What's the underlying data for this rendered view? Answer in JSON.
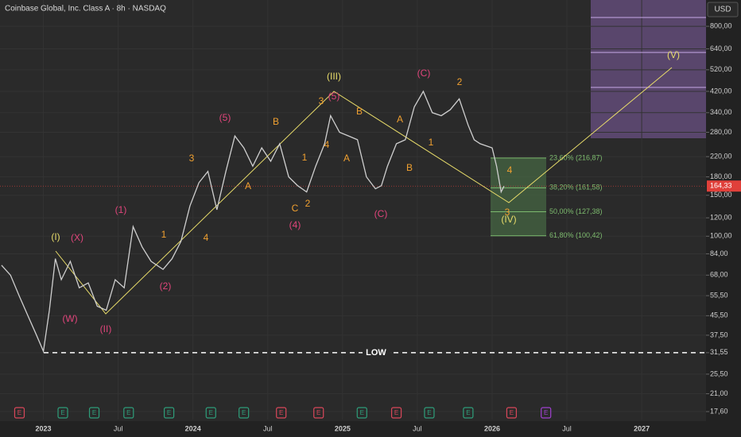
{
  "chart_data": {
    "type": "line",
    "title": "Coinbase Global, Inc. Class A · 8h · NASDAQ",
    "currency": "USD",
    "log_scale": true,
    "grid": true,
    "color": "#cfcfcf",
    "x": [
      2022.72,
      2022.78,
      2022.84,
      2022.9,
      2022.95,
      2023.0,
      2023.04,
      2023.08,
      2023.12,
      2023.18,
      2023.24,
      2023.3,
      2023.36,
      2023.42,
      2023.48,
      2023.54,
      2023.6,
      2023.66,
      2023.72,
      2023.8,
      2023.86,
      2023.92,
      2023.98,
      2024.04,
      2024.1,
      2024.16,
      2024.22,
      2024.28,
      2024.34,
      2024.4,
      2024.46,
      2024.52,
      2024.58,
      2024.64,
      2024.7,
      2024.76,
      2024.82,
      2024.88,
      2024.92,
      2024.98,
      2025.04,
      2025.1,
      2025.16,
      2025.22,
      2025.26,
      2025.3,
      2025.36,
      2025.42,
      2025.48,
      2025.54,
      2025.6,
      2025.66,
      2025.72,
      2025.78,
      2025.84,
      2025.88,
      2025.92,
      2026.0,
      2026.03,
      2026.06,
      2026.08
    ],
    "values": [
      75,
      68,
      55,
      45,
      38,
      32,
      48,
      80,
      65,
      78,
      60,
      63,
      50,
      48,
      65,
      60,
      110,
      90,
      78,
      72,
      80,
      95,
      135,
      170,
      190,
      130,
      190,
      270,
      240,
      200,
      240,
      210,
      250,
      180,
      165,
      155,
      200,
      250,
      330,
      280,
      270,
      260,
      180,
      160,
      165,
      200,
      250,
      260,
      360,
      420,
      340,
      330,
      350,
      390,
      300,
      260,
      250,
      240,
      200,
      155,
      164.33
    ],
    "xlim": [
      2022.71,
      2027.43
    ],
    "xticks": [
      2023,
      {
        "value": 2023.5,
        "label": "Jul"
      },
      2024,
      {
        "value": 2024.5,
        "label": "Jul"
      },
      2025,
      {
        "value": 2025.5,
        "label": "Jul"
      },
      2026,
      {
        "value": 2026.5,
        "label": "Jul"
      },
      2027
    ],
    "ylim": [
      16.27,
      1038
    ],
    "yticks": [
      {
        "value": 800,
        "label": "800,00"
      },
      {
        "value": 640,
        "label": "640,00"
      },
      {
        "value": 520,
        "label": "520,00"
      },
      {
        "value": 420,
        "label": "420,00"
      },
      {
        "value": 340,
        "label": "340,00"
      },
      {
        "value": 280,
        "label": "280,00"
      },
      {
        "value": 220,
        "label": "220,00"
      },
      {
        "value": 180,
        "label": "180,00"
      },
      {
        "value": 150,
        "label": "150,00"
      },
      {
        "value": 120,
        "label": "120,00"
      },
      {
        "value": 100,
        "label": "100,00"
      },
      {
        "value": 84,
        "label": "84,00"
      },
      {
        "value": 68,
        "label": "68,00"
      },
      {
        "value": 55.5,
        "label": "55,50"
      },
      {
        "value": 45.5,
        "label": "45,50"
      },
      {
        "value": 37.5,
        "label": "37,50"
      },
      {
        "value": 31.55,
        "label": "31,55"
      },
      {
        "value": 25.5,
        "label": "25,50"
      },
      {
        "value": 21,
        "label": "21,00"
      },
      {
        "value": 17.6,
        "label": "17,60"
      }
    ],
    "last_price": {
      "value": 164.33,
      "label": "164,33",
      "color": "#e0403a"
    },
    "low_line": {
      "value": 31.55,
      "label": "LOW"
    },
    "fib_levels": [
      {
        "value": 216.87,
        "label": "23,60% (216,87)"
      },
      {
        "value": 161.58,
        "label": "38,20% (161,58)"
      },
      {
        "value": 127.38,
        "label": "50,00% (127,38)"
      },
      {
        "value": 100.42,
        "label": "61,80% (100,42)"
      }
    ],
    "annotations": [
      {
        "text": "(I)",
        "color": "#e8dc6a"
      },
      {
        "text": "(X)",
        "color": "#e0457b"
      },
      {
        "text": "(W)",
        "color": "#e0457b"
      },
      {
        "text": "(II)",
        "color": "#e0457b"
      },
      {
        "text": "(1)",
        "color": "#e0457b"
      },
      {
        "text": "1",
        "color": "#f0a030"
      },
      {
        "text": "(2)",
        "color": "#e0457b"
      },
      {
        "text": "3",
        "color": "#f0a030"
      },
      {
        "text": "4",
        "color": "#f0a030"
      },
      {
        "text": "(5)",
        "color": "#e0457b"
      },
      {
        "text": "A",
        "color": "#f0a030"
      },
      {
        "text": "B",
        "color": "#f0a030"
      },
      {
        "text": "C",
        "color": "#f0a030"
      },
      {
        "text": "2",
        "color": "#f0a030"
      },
      {
        "text": "(4)",
        "color": "#e0457b"
      },
      {
        "text": "1",
        "color": "#f0a030"
      },
      {
        "text": "4",
        "color": "#f0a030"
      },
      {
        "text": "3",
        "color": "#f0a030"
      },
      {
        "text": "(5)",
        "color": "#e0457b"
      },
      {
        "text": "(III)",
        "color": "#e8dc6a"
      },
      {
        "text": "A",
        "color": "#f0a030"
      },
      {
        "text": "B",
        "color": "#f0a030"
      },
      {
        "text": "(C)",
        "color": "#e0457b"
      },
      {
        "text": "B",
        "color": "#f0a030"
      },
      {
        "text": "A",
        "color": "#f0a030"
      },
      {
        "text": "1",
        "color": "#f0a030"
      },
      {
        "text": "(C)",
        "color": "#e0457b"
      },
      {
        "text": "2",
        "color": "#f0a030"
      },
      {
        "text": "4",
        "color": "#f0a030"
      },
      {
        "text": "3",
        "color": "#f0a030"
      },
      {
        "text": "(IV)",
        "color": "#e8dc6a"
      },
      {
        "text": "(V)",
        "color": "#e8dc6a"
      }
    ],
    "earnings": [
      {
        "x": 2022.84,
        "label": "E",
        "color": "#d9475a"
      },
      {
        "x": 2023.13,
        "label": "E",
        "color": "#2e9e7a"
      },
      {
        "x": 2023.34,
        "label": "E",
        "color": "#2e9e7a"
      },
      {
        "x": 2023.57,
        "label": "E",
        "color": "#2e9e7a"
      },
      {
        "x": 2023.84,
        "label": "E",
        "color": "#2e9e7a"
      },
      {
        "x": 2024.12,
        "label": "E",
        "color": "#2e9e7a"
      },
      {
        "x": 2024.34,
        "label": "E",
        "color": "#2e9e7a"
      },
      {
        "x": 2024.59,
        "label": "E",
        "color": "#d9475a"
      },
      {
        "x": 2024.84,
        "label": "E",
        "color": "#d9475a"
      },
      {
        "x": 2025.13,
        "label": "E",
        "color": "#2e9e7a"
      },
      {
        "x": 2025.36,
        "label": "E",
        "color": "#d9475a"
      },
      {
        "x": 2025.58,
        "label": "E",
        "color": "#2e9e7a"
      },
      {
        "x": 2025.84,
        "label": "E",
        "color": "#2e9e7a"
      },
      {
        "x": 2026.13,
        "label": "E",
        "color": "#d9475a"
      },
      {
        "x": 2026.36,
        "label": "E",
        "color": "#a040d0"
      }
    ]
  }
}
